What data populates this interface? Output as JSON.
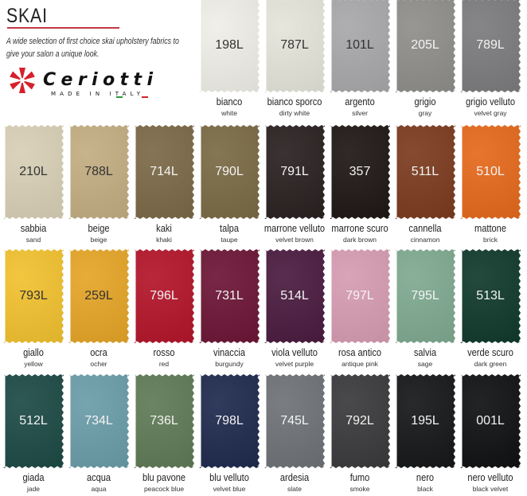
{
  "header": {
    "title": "SKAI",
    "description": "A wide selection of first choice skai upholstery fabrics to give  your salon a unique look.",
    "logo": {
      "brand": "Ceriotti",
      "tagline": "MADE IN ITALY",
      "icon": "ceriotti-star-logo",
      "color": "#d6202c"
    }
  },
  "swatches": [
    {
      "code": "198L",
      "name": "bianco",
      "en": "white",
      "color": "#efeee7",
      "light": true
    },
    {
      "code": "787L",
      "name": "bianco sporco",
      "en": "dirty white",
      "color": "#e4e4d9",
      "light": true
    },
    {
      "code": "101L",
      "name": "argento",
      "en": "silver",
      "color": "#a8a8aa",
      "light": true
    },
    {
      "code": "205L",
      "name": "grigio",
      "en": "gray",
      "color": "#8f8e8b",
      "light": false
    },
    {
      "code": "789L",
      "name": "grigio velluto",
      "en": "velvet gray",
      "color": "#7c7b7d",
      "light": false
    },
    {
      "code": "210L",
      "name": "sabbia",
      "en": "sand",
      "color": "#d8cfb6",
      "light": true
    },
    {
      "code": "788L",
      "name": "beige",
      "en": "beige",
      "color": "#c3ad82",
      "light": true
    },
    {
      "code": "714L",
      "name": "kaki",
      "en": "khaki",
      "color": "#7b6947",
      "light": false
    },
    {
      "code": "790L",
      "name": "talpa",
      "en": "taupe",
      "color": "#7a6a45",
      "light": false
    },
    {
      "code": "791L",
      "name": "marrone velluto",
      "en": "velvet brown",
      "color": "#2a2121",
      "light": false
    },
    {
      "code": "357",
      "name": "marrone scuro",
      "en": "dark brown",
      "color": "#1e1715",
      "light": false
    },
    {
      "code": "511L",
      "name": "cannella",
      "en": "cinnamon",
      "color": "#7b3b1f",
      "light": false
    },
    {
      "code": "510L",
      "name": "mattone",
      "en": "brick",
      "color": "#e5691c",
      "light": false
    },
    {
      "code": "793L",
      "name": "giallo",
      "en": "yellow",
      "color": "#f1c12f",
      "light": true
    },
    {
      "code": "259L",
      "name": "ocra",
      "en": "ocher",
      "color": "#e5a527",
      "light": true
    },
    {
      "code": "796L",
      "name": "rosso",
      "en": "red",
      "color": "#b3152a",
      "light": false
    },
    {
      "code": "731L",
      "name": "vinaccia",
      "en": "burgundy",
      "color": "#6c1636",
      "light": false
    },
    {
      "code": "514L",
      "name": "viola velluto",
      "en": "velvet purple",
      "color": "#4a1b3f",
      "light": false
    },
    {
      "code": "797L",
      "name": "rosa antico",
      "en": "antique pink",
      "color": "#d69cb1",
      "light": false
    },
    {
      "code": "795L",
      "name": "salvia",
      "en": "sage",
      "color": "#7fa990",
      "light": false
    },
    {
      "code": "513L",
      "name": "verde scuro",
      "en": "dark green",
      "color": "#103a2b",
      "light": false
    },
    {
      "code": "512L",
      "name": "giada",
      "en": "jade",
      "color": "#1d4a46",
      "light": false
    },
    {
      "code": "734L",
      "name": "acqua",
      "en": "aqua",
      "color": "#6a9ca8",
      "light": false
    },
    {
      "code": "736L",
      "name": "blu pavone",
      "en": "peacock blue",
      "color": "#5f7a56",
      "light": false
    },
    {
      "code": "798L",
      "name": "blu velluto",
      "en": "velvet blue",
      "color": "#1f2a4e",
      "light": false
    },
    {
      "code": "745L",
      "name": "ardesia",
      "en": "slate",
      "color": "#6e7276",
      "light": false
    },
    {
      "code": "792L",
      "name": "fumo",
      "en": "smoke",
      "color": "#3a3a3c",
      "light": false
    },
    {
      "code": "195L",
      "name": "nero",
      "en": "black",
      "color": "#151719",
      "light": false
    },
    {
      "code": "001L",
      "name": "nero velluto",
      "en": "black velvet",
      "color": "#101113",
      "light": false
    }
  ]
}
